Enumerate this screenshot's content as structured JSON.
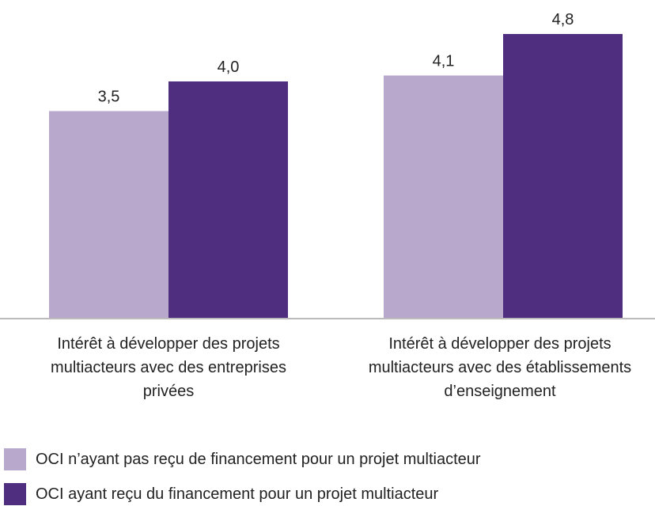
{
  "chart_data": {
    "type": "bar",
    "categories": [
      "Intérêt à développer des projets multiacteurs avec des entreprises privées",
      "Intérêt à développer des projets multiacteurs avec des établissements d’enseignement"
    ],
    "series": [
      {
        "name": "OCI n’ayant pas reçu de financement pour un projet multiacteur",
        "color": "#b8a9cc",
        "values": [
          3.5,
          4.1
        ],
        "value_labels": [
          "3,5",
          "4,1"
        ]
      },
      {
        "name": "OCI ayant reçu du financement pour un projet multiacteur",
        "color": "#4f2d7f",
        "values": [
          4.0,
          4.8
        ],
        "value_labels": [
          "4,0",
          "4,8"
        ]
      }
    ]
  }
}
